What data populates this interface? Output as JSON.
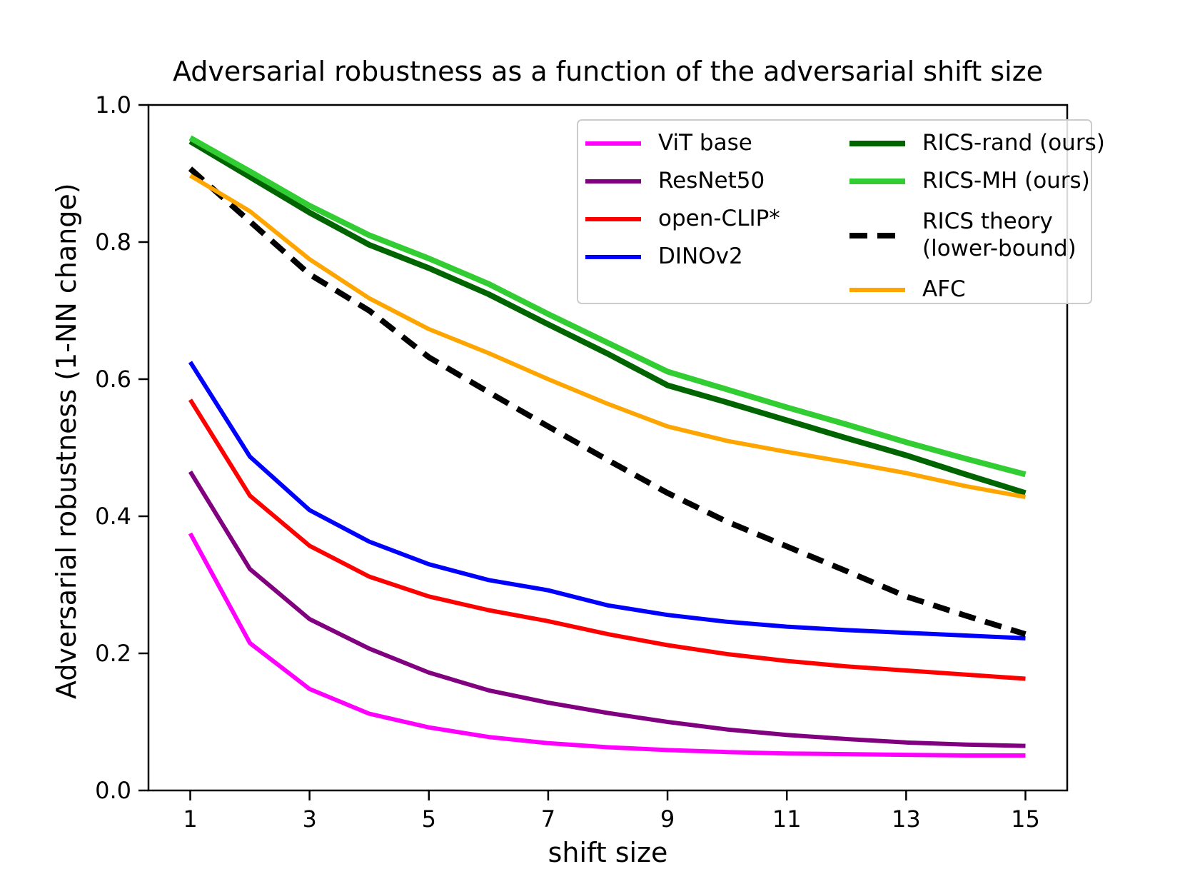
{
  "title": "Adversarial robustness as a function of the adversarial shift size",
  "chart_data": {
    "type": "line",
    "title": "Adversarial robustness as a function of the adversarial shift size",
    "xlabel": "shift size",
    "ylabel": "Adversarial robustness (1-NN change)",
    "x": [
      1,
      2,
      3,
      4,
      5,
      6,
      7,
      8,
      9,
      10,
      11,
      12,
      13,
      14,
      15
    ],
    "xlim": [
      0.3,
      15.7
    ],
    "ylim": [
      0.0,
      1.0
    ],
    "xticks": [
      "1",
      "3",
      "5",
      "7",
      "9",
      "11",
      "13",
      "15"
    ],
    "yticks": [
      "0.0",
      "0.2",
      "0.4",
      "0.6",
      "0.8",
      "1.0"
    ],
    "grid": false,
    "legend_position": "upper right",
    "legend_columns": 2,
    "series": [
      {
        "name": "ViT base",
        "color": "#ff00ff",
        "style": "solid",
        "width": 6,
        "legend_column": 1,
        "values": [
          0.375,
          0.215,
          0.148,
          0.112,
          0.092,
          0.078,
          0.069,
          0.063,
          0.059,
          0.056,
          0.054,
          0.053,
          0.052,
          0.051,
          0.051
        ]
      },
      {
        "name": "ResNet50",
        "color": "#800080",
        "style": "solid",
        "width": 6,
        "legend_column": 1,
        "values": [
          0.465,
          0.323,
          0.25,
          0.207,
          0.172,
          0.146,
          0.128,
          0.113,
          0.1,
          0.089,
          0.081,
          0.075,
          0.07,
          0.067,
          0.065
        ]
      },
      {
        "name": "open-CLIP*",
        "color": "#ff0000",
        "style": "solid",
        "width": 6,
        "legend_column": 1,
        "values": [
          0.57,
          0.43,
          0.357,
          0.312,
          0.283,
          0.263,
          0.247,
          0.228,
          0.212,
          0.199,
          0.189,
          0.181,
          0.175,
          0.169,
          0.163
        ]
      },
      {
        "name": "DINOv2",
        "color": "#0000ff",
        "style": "solid",
        "width": 6,
        "legend_column": 1,
        "values": [
          0.625,
          0.487,
          0.409,
          0.363,
          0.33,
          0.307,
          0.292,
          0.27,
          0.256,
          0.246,
          0.239,
          0.234,
          0.23,
          0.226,
          0.222
        ]
      },
      {
        "name": "RICS-rand (ours)",
        "color": "#006400",
        "style": "solid",
        "width": 8,
        "legend_column": 2,
        "values": [
          0.947,
          0.895,
          0.843,
          0.796,
          0.762,
          0.724,
          0.68,
          0.637,
          0.591,
          0.566,
          0.54,
          0.514,
          0.489,
          0.461,
          0.434
        ]
      },
      {
        "name": "RICS-MH (ours)",
        "color": "#32cd32",
        "style": "solid",
        "width": 8,
        "legend_column": 2,
        "values": [
          0.952,
          0.903,
          0.853,
          0.81,
          0.776,
          0.739,
          0.695,
          0.653,
          0.611,
          0.585,
          0.559,
          0.534,
          0.508,
          0.484,
          0.461
        ]
      },
      {
        "name": "RICS theory (lower-bound)",
        "legend_label_lines": [
          "RICS theory",
          "(lower-bound)"
        ],
        "color": "#000000",
        "style": "dashed",
        "width": 8,
        "legend_column": 2,
        "values": [
          0.907,
          0.83,
          0.753,
          0.7,
          0.632,
          0.581,
          0.531,
          0.482,
          0.434,
          0.392,
          0.356,
          0.32,
          0.283,
          0.255,
          0.228
        ]
      },
      {
        "name": "AFC",
        "color": "#ffa500",
        "style": "solid",
        "width": 6,
        "legend_column": 2,
        "values": [
          0.897,
          0.845,
          0.775,
          0.718,
          0.673,
          0.638,
          0.6,
          0.564,
          0.531,
          0.51,
          0.494,
          0.479,
          0.463,
          0.444,
          0.428
        ]
      }
    ]
  }
}
